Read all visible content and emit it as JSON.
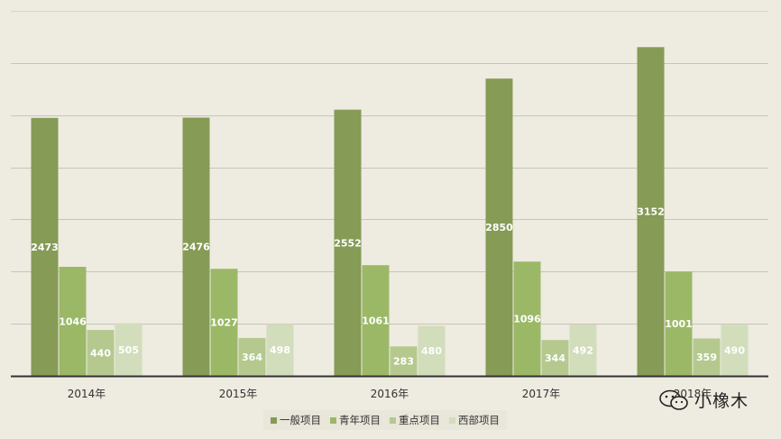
{
  "chart_data": {
    "type": "bar",
    "categories": [
      "2014年",
      "2015年",
      "2016年",
      "2017年",
      "2018年"
    ],
    "series": [
      {
        "name": "一般项目",
        "color": "#859b56",
        "values": [
          2473,
          2476,
          2552,
          2850,
          3152
        ]
      },
      {
        "name": "青年项目",
        "color": "#9bb867",
        "values": [
          1046,
          1027,
          1061,
          1096,
          1001
        ]
      },
      {
        "name": "重点项目",
        "color": "#b5c98f",
        "values": [
          440,
          364,
          283,
          344,
          359
        ]
      },
      {
        "name": "西部项目",
        "color": "#d2ddbb",
        "values": [
          505,
          498,
          480,
          492,
          490
        ]
      }
    ],
    "ylim": [
      0,
      3500
    ],
    "grid": true,
    "legend": "bottom-center",
    "data_labels": true
  },
  "watermark": {
    "text": "小橡木",
    "icon": "wechat-icon"
  }
}
